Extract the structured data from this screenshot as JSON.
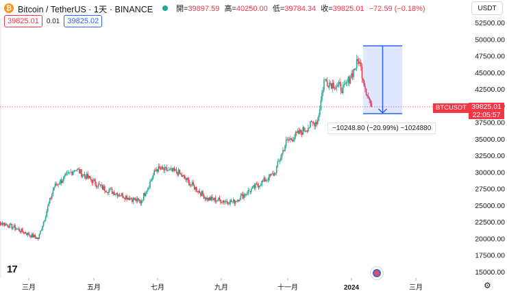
{
  "header": {
    "logo_glyph": "₿",
    "symbol_title": "Bitcoin / TetherUS · 1天 · BINANCE",
    "status_color": "#22ab94",
    "ohlc": [
      {
        "label": "開=",
        "value": "39897.59"
      },
      {
        "label": "高=",
        "value": "40250.00"
      },
      {
        "label": "低=",
        "value": "39784.34"
      },
      {
        "label": "收=",
        "value": "39825.01"
      },
      {
        "label": "",
        "value": "−72.59 (−0.18%)"
      }
    ],
    "sell_price": "39825.01",
    "spread": "0.01",
    "buy_price": "39825.02",
    "currency": "USDT"
  },
  "chart_data": {
    "type": "candlestick",
    "y_ticks": [
      "52500.00",
      "50000.00",
      "47500.00",
      "45000.00",
      "42500.00",
      "40000.00",
      "37500.00",
      "35000.00",
      "32500.00",
      "30000.00",
      "27500.00",
      "25000.00",
      "22500.00",
      "20000.00",
      "17500.00",
      "15000.00"
    ],
    "ylim": [
      14000,
      53500
    ],
    "x_ticks": [
      {
        "label": "三月",
        "bold": false
      },
      {
        "label": "五月",
        "bold": false
      },
      {
        "label": "七月",
        "bold": false
      },
      {
        "label": "九月",
        "bold": false
      },
      {
        "label": "十一月",
        "bold": false
      },
      {
        "label": "2024",
        "bold": true
      },
      {
        "label": "三月",
        "bold": false
      }
    ],
    "approx_close_path": [
      {
        "date": "2023-01-20",
        "close": 23000
      },
      {
        "date": "2023-02-10",
        "close": 22000
      },
      {
        "date": "2023-03-10",
        "close": 20000
      },
      {
        "date": "2023-03-25",
        "close": 27800
      },
      {
        "date": "2023-04-14",
        "close": 30500
      },
      {
        "date": "2023-05-10",
        "close": 27600
      },
      {
        "date": "2023-06-15",
        "close": 25500
      },
      {
        "date": "2023-06-30",
        "close": 30500
      },
      {
        "date": "2023-07-20",
        "close": 30000
      },
      {
        "date": "2023-08-17",
        "close": 26000
      },
      {
        "date": "2023-09-11",
        "close": 25500
      },
      {
        "date": "2023-10-20",
        "close": 29800
      },
      {
        "date": "2023-10-31",
        "close": 34500
      },
      {
        "date": "2023-11-30",
        "close": 37800
      },
      {
        "date": "2023-12-06",
        "close": 43800
      },
      {
        "date": "2023-12-25",
        "close": 42500
      },
      {
        "date": "2024-01-08",
        "close": 46900
      },
      {
        "date": "2024-01-14",
        "close": 42800
      },
      {
        "date": "2024-01-20",
        "close": 39825
      }
    ],
    "last_price": "39825.01",
    "last_price_time": "22:05:57",
    "symbol_tag": "BTCUSDT",
    "up_color": "#22ab94",
    "down_color": "#f23645",
    "measure": {
      "from_price": 49000,
      "to_price": 38800,
      "label": "−10248.80 (−20.99%) −1024880",
      "color": "#2962ff"
    }
  },
  "footer": {
    "tv_logo": "17",
    "settings_glyph": "⚙"
  }
}
